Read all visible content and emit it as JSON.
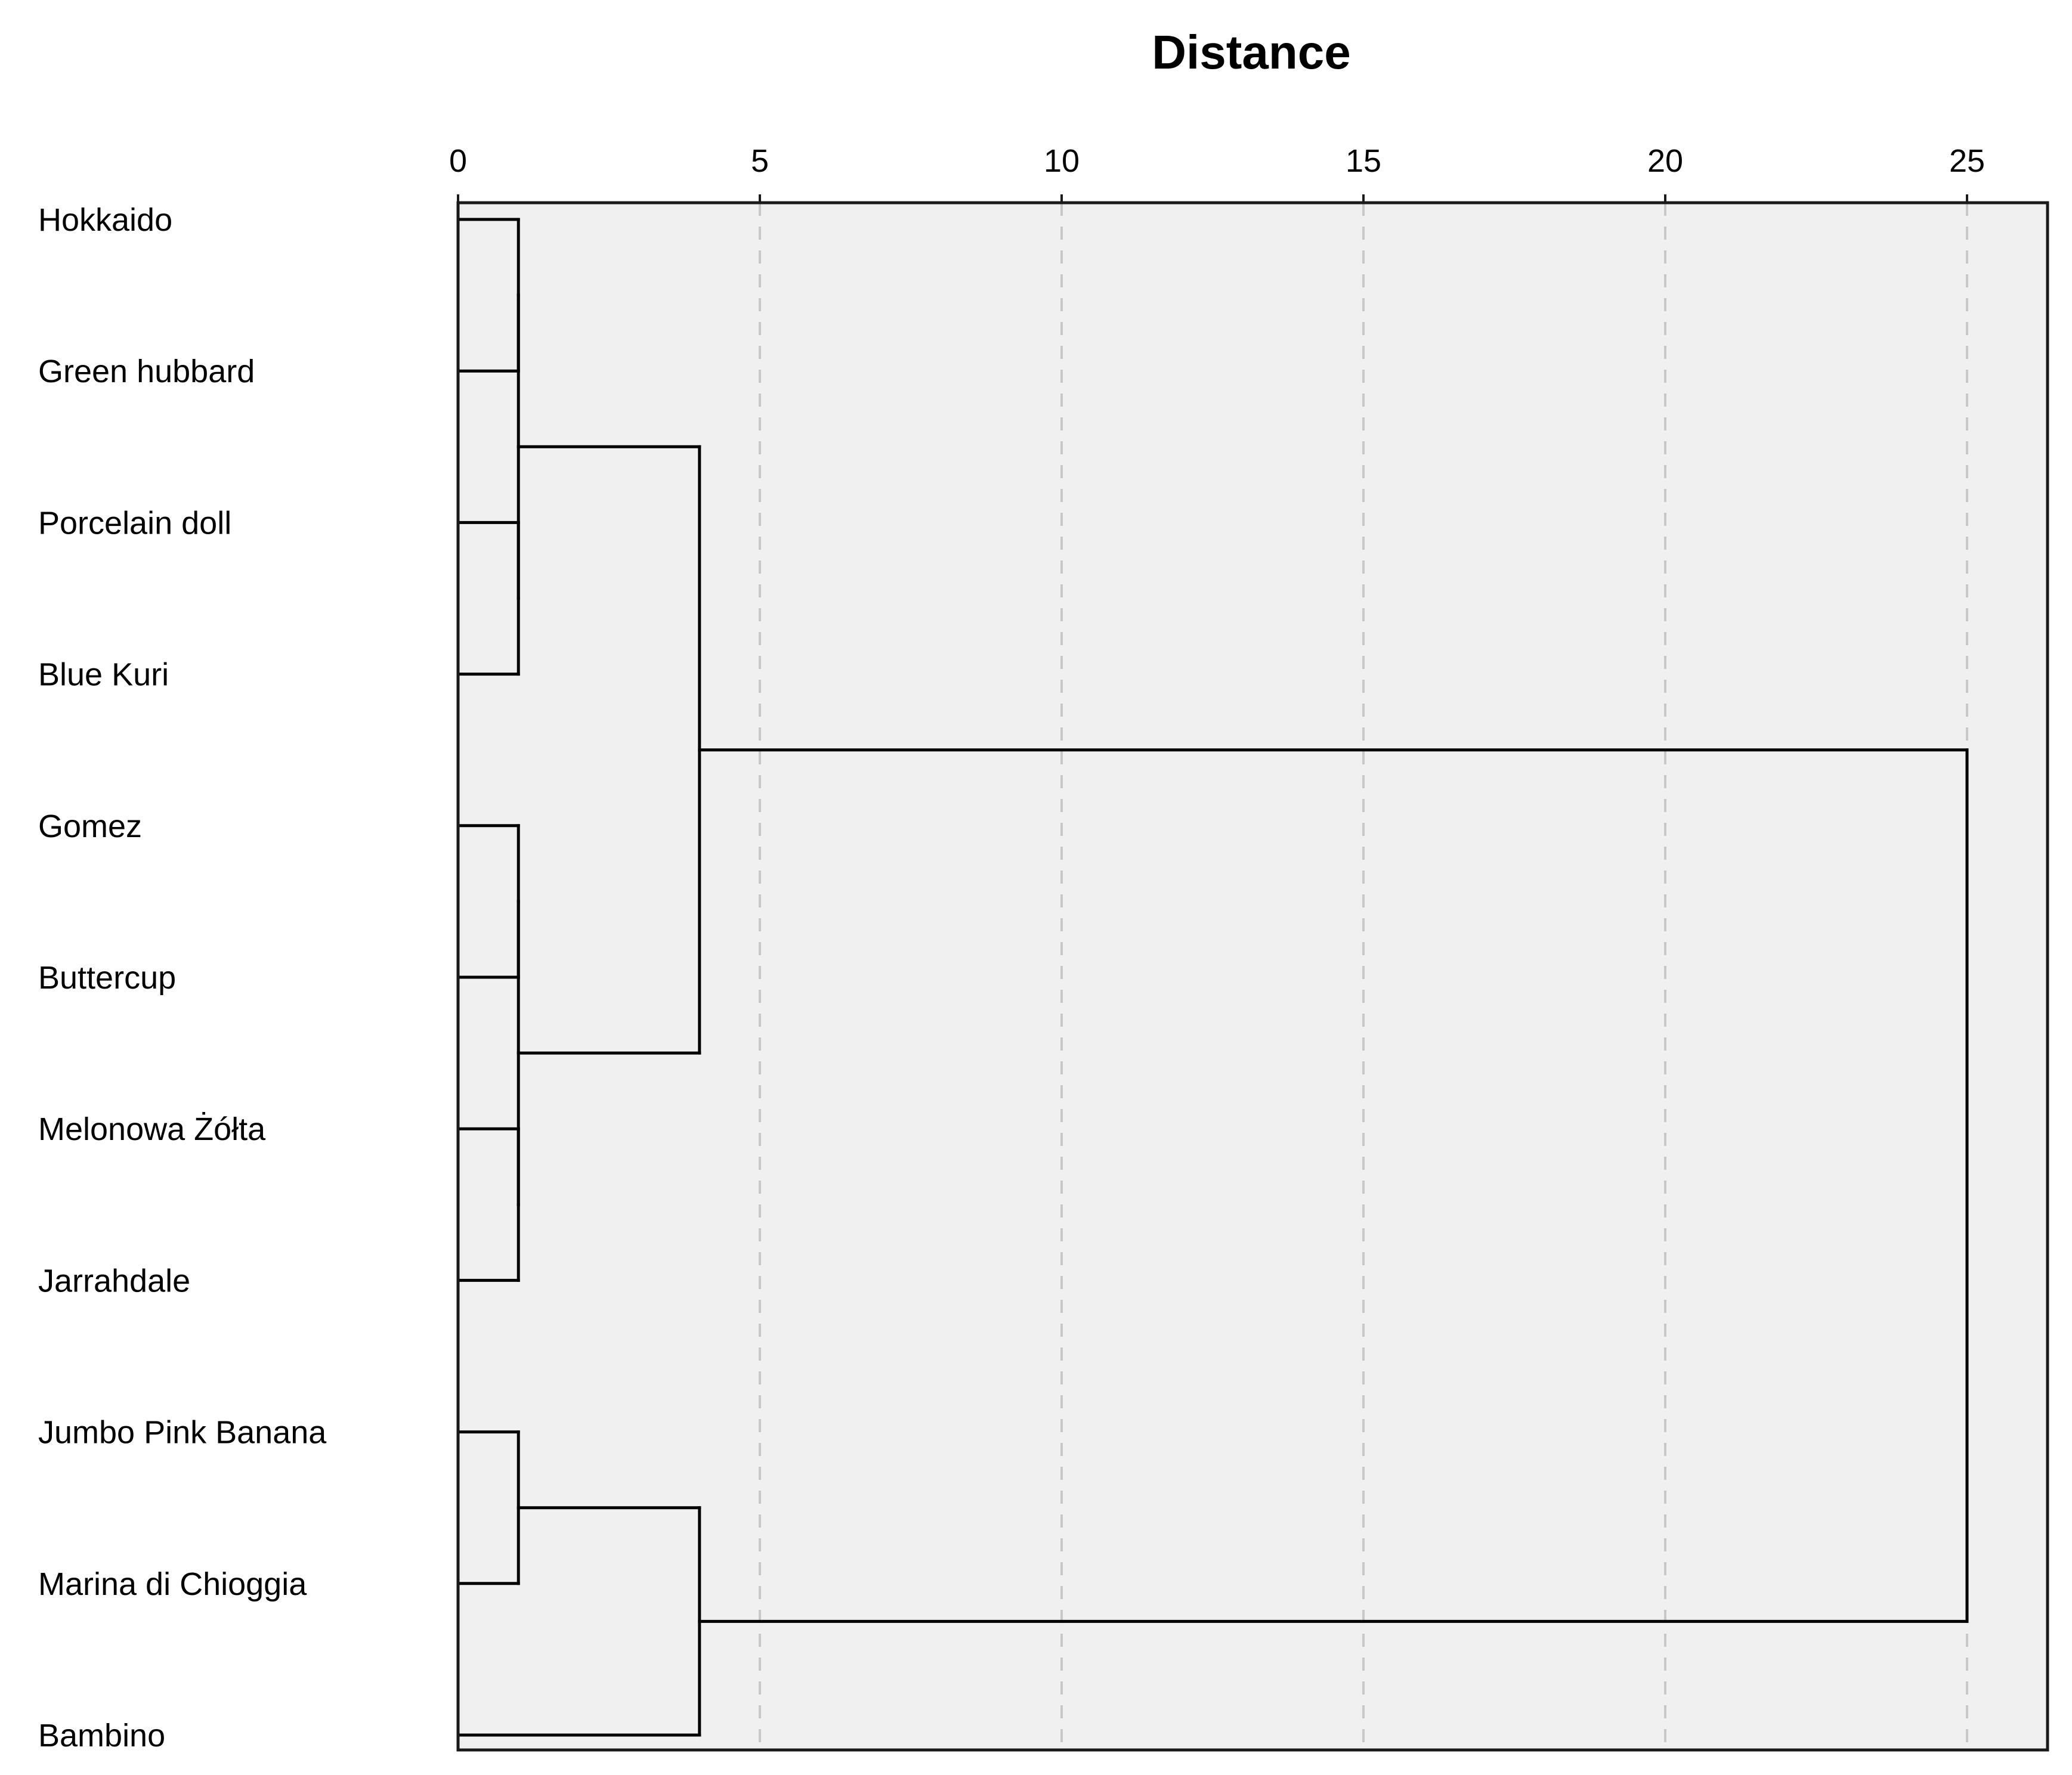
{
  "chart_data": {
    "type": "dendrogram",
    "title": "Distance",
    "xlabel": "",
    "ylabel": "",
    "axis_position": "top",
    "xlim": [
      0,
      26.3
    ],
    "x_ticks": [
      0,
      5,
      10,
      15,
      20,
      25
    ],
    "grid": true,
    "grid_style": "dashed vertical",
    "colors": {
      "background": "#ffffff",
      "plot_background": "#f0f0f0",
      "lines": "#000000",
      "grid": "#c8c8c8"
    },
    "leaves": [
      "Hokkaido",
      "Green hubbard",
      "Porcelain doll",
      "Blue Kuri",
      "Gomez",
      "Buttercup",
      "Melonowa Żółta",
      "Jarrahdale",
      "Jumbo Pink Banana",
      "Marina di Chioggia",
      "Bambino"
    ],
    "merges": [
      {
        "id": "m1",
        "children": [
          "L0",
          "L1"
        ],
        "height": 1
      },
      {
        "id": "m2",
        "children": [
          "L2",
          "L3"
        ],
        "height": 1
      },
      {
        "id": "m3",
        "children": [
          "L4",
          "L5"
        ],
        "height": 1
      },
      {
        "id": "m4",
        "children": [
          "L6",
          "L7"
        ],
        "height": 1
      },
      {
        "id": "m5",
        "children": [
          "L8",
          "L9"
        ],
        "height": 1
      },
      {
        "id": "m6",
        "children": [
          "m1",
          "m2"
        ],
        "height": 1
      },
      {
        "id": "m7",
        "children": [
          "m3",
          "m4"
        ],
        "height": 1
      },
      {
        "id": "m8",
        "children": [
          "m6",
          "m7"
        ],
        "height": 4
      },
      {
        "id": "m9",
        "children": [
          "m5",
          "L10"
        ],
        "height": 4
      },
      {
        "id": "m10",
        "children": [
          "m8",
          "m9"
        ],
        "height": 25
      }
    ]
  }
}
